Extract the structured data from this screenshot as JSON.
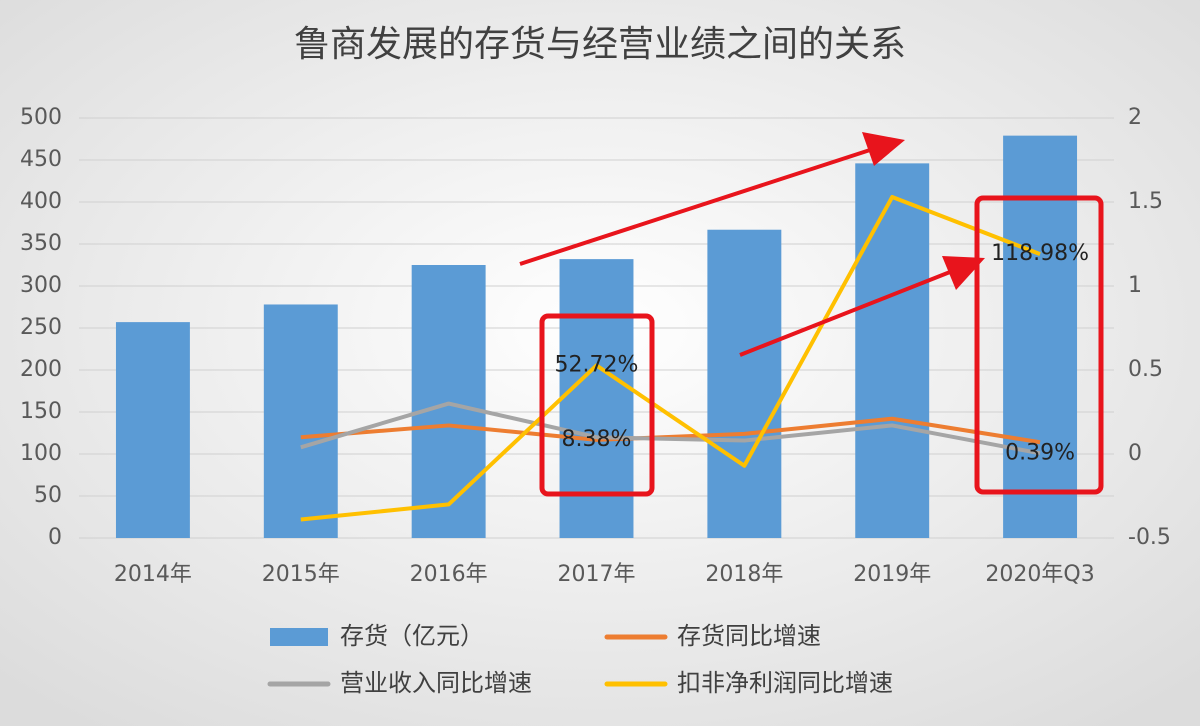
{
  "chart_data": {
    "type": "bar-line",
    "title": "鲁商发展的存货与经营业绩之间的关系",
    "categories": [
      "2014年",
      "2015年",
      "2016年",
      "2017年",
      "2018年",
      "2019年",
      "2020年Q3"
    ],
    "series": [
      {
        "name": "存货（亿元）",
        "type": "bar",
        "color": "#5b9bd5",
        "values": [
          257,
          278,
          325,
          332,
          367,
          446,
          479
        ]
      },
      {
        "name": "存货同比增速",
        "type": "line",
        "axis": "y2",
        "color": "#ed7d31",
        "values": [
          null,
          0.1,
          0.17,
          0.0838,
          0.12,
          0.21,
          0.07
        ],
        "value_labels": [
          null,
          null,
          null,
          "8.38%",
          null,
          null,
          null
        ]
      },
      {
        "name": "营业收入同比增速",
        "type": "line",
        "axis": "y2",
        "color": "#a5a5a5",
        "values": [
          null,
          0.04,
          0.3,
          0.1,
          0.08,
          0.17,
          0.0039
        ],
        "value_labels": [
          null,
          null,
          null,
          null,
          null,
          null,
          "0.39%"
        ]
      },
      {
        "name": "扣非净利润同比增速",
        "type": "line",
        "axis": "y2",
        "color": "#ffc000",
        "values": [
          null,
          -0.39,
          -0.3,
          0.5272,
          -0.07,
          1.53,
          1.1898
        ],
        "value_labels": [
          null,
          null,
          null,
          "52.72%",
          null,
          null,
          "118.98%"
        ]
      }
    ],
    "ylim": [
      0,
      500
    ],
    "yticks": [
      0,
      50,
      100,
      150,
      200,
      250,
      300,
      350,
      400,
      450,
      500
    ],
    "y2lim": [
      -0.5,
      2
    ],
    "y2ticks": [
      -0.5,
      0,
      0.5,
      1,
      1.5,
      2
    ],
    "grid": true
  }
}
